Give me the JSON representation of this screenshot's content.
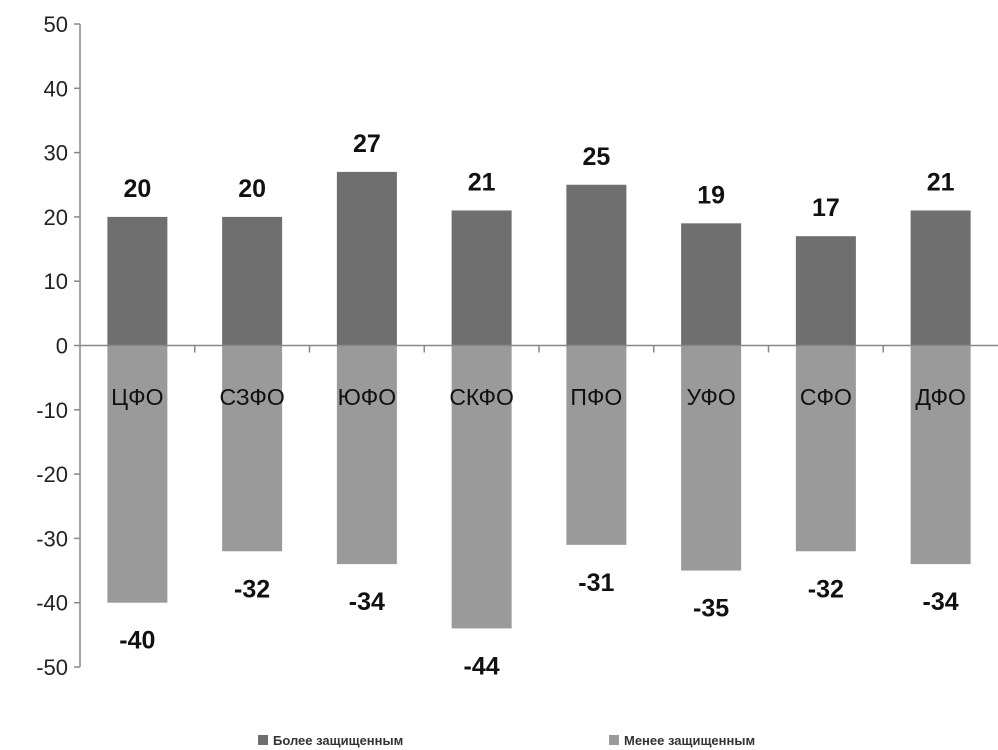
{
  "chart_data": {
    "type": "bar",
    "categories": [
      "ЦФО",
      "СЗФО",
      "ЮФО",
      "СКФО",
      "ПФО",
      "УФО",
      "СФО",
      "ДФО"
    ],
    "series": [
      {
        "name": "Более защищенным",
        "values": [
          20,
          20,
          27,
          21,
          25,
          19,
          17,
          21
        ],
        "color": "#6f6f6f"
      },
      {
        "name": "Менее защищенным",
        "values": [
          -40,
          -32,
          -34,
          -44,
          -31,
          -35,
          -32,
          -34
        ],
        "color": "#9a9a9a"
      }
    ],
    "ylim": [
      -50,
      50
    ],
    "yticks": [
      50,
      40,
      30,
      20,
      10,
      0,
      -10,
      -20,
      -30,
      -40,
      -50
    ],
    "grid": false,
    "legend_position": "bottom"
  }
}
